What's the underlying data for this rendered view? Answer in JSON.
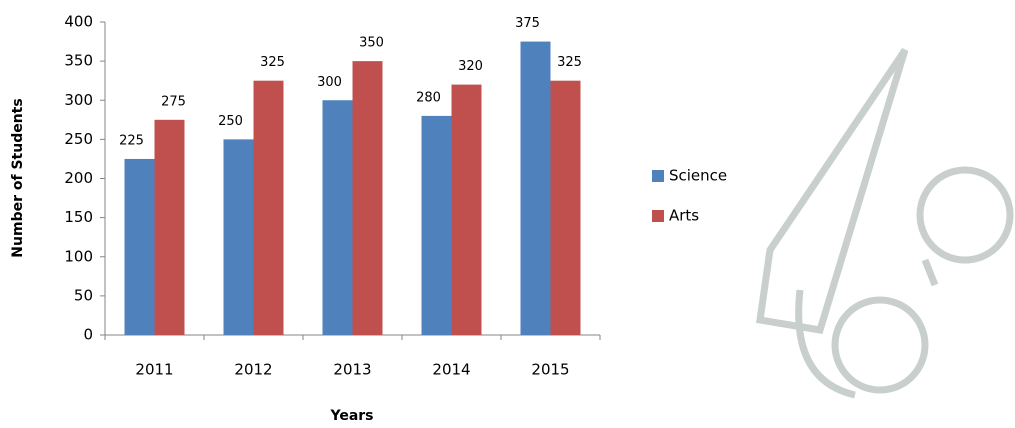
{
  "chart_data": {
    "type": "bar",
    "xlabel": "Years",
    "ylabel": "Number of Students",
    "categories": [
      "2011",
      "2012",
      "2013",
      "2014",
      "2015"
    ],
    "series": [
      {
        "name": "Science",
        "color": "#4f81bd",
        "values": [
          225,
          250,
          300,
          280,
          375
        ]
      },
      {
        "name": "Arts",
        "color": "#c0504d",
        "values": [
          275,
          325,
          350,
          320,
          325
        ]
      }
    ],
    "ylim": [
      0,
      400
    ],
    "yticks": [
      0,
      50,
      100,
      150,
      200,
      250,
      300,
      350,
      400
    ],
    "grid": false,
    "legend": "right"
  }
}
